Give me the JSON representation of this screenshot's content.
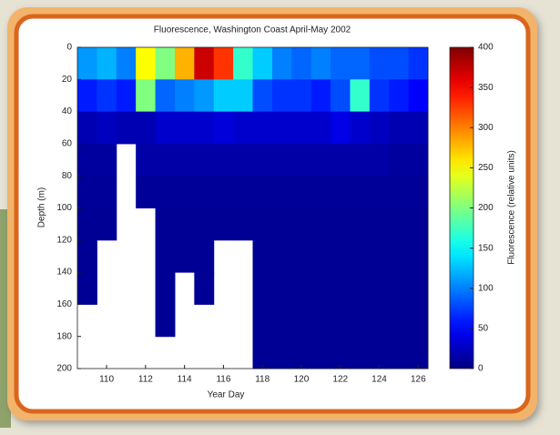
{
  "chart_data": {
    "type": "heatmap",
    "title": "Fluorescence, Washington Coast April-May 2002",
    "x_label": "Year Day",
    "y_label": "Depth (m)",
    "x_bins": [
      108.5,
      109.5,
      110.5,
      111.5,
      112.5,
      113.5,
      114.5,
      115.5,
      116.5,
      117.5,
      118.5,
      119.5,
      120.5,
      121.5,
      122.5,
      123.5,
      124.5,
      125.5,
      126.5
    ],
    "y_bins": [
      0,
      20,
      40,
      60,
      80,
      100,
      120,
      140,
      160,
      180,
      200
    ],
    "xlim": [
      108.5,
      126.5
    ],
    "xticks": [
      110,
      112,
      114,
      116,
      118,
      120,
      122,
      124,
      126
    ],
    "ylim": [
      0,
      200
    ],
    "yticks": [
      0,
      20,
      40,
      60,
      80,
      100,
      120,
      140,
      160,
      180,
      200
    ],
    "y_inverted": true,
    "colormap": "jet",
    "values": [
      [
        110,
        120,
        100,
        250,
        200,
        280,
        370,
        330,
        170,
        130,
        100,
        90,
        100,
        90,
        90,
        80,
        80,
        70
      ],
      [
        60,
        70,
        60,
        200,
        90,
        100,
        110,
        130,
        130,
        80,
        70,
        70,
        60,
        80,
        170,
        70,
        60,
        50
      ],
      [
        20,
        25,
        20,
        20,
        30,
        30,
        30,
        35,
        30,
        30,
        30,
        30,
        30,
        40,
        30,
        25,
        20,
        20
      ],
      [
        12,
        12,
        null,
        15,
        15,
        15,
        15,
        15,
        15,
        15,
        15,
        15,
        15,
        15,
        15,
        15,
        12,
        12
      ],
      [
        10,
        10,
        null,
        10,
        10,
        10,
        10,
        10,
        10,
        10,
        10,
        10,
        10,
        10,
        10,
        10,
        10,
        10
      ],
      [
        8,
        8,
        null,
        null,
        8,
        8,
        8,
        8,
        8,
        8,
        8,
        8,
        8,
        8,
        8,
        8,
        8,
        8
      ],
      [
        8,
        null,
        null,
        null,
        8,
        8,
        8,
        null,
        null,
        8,
        8,
        8,
        8,
        8,
        8,
        8,
        8,
        8
      ],
      [
        8,
        null,
        null,
        null,
        8,
        null,
        8,
        null,
        null,
        8,
        8,
        8,
        8,
        8,
        8,
        8,
        8,
        8
      ],
      [
        null,
        null,
        null,
        null,
        8,
        null,
        null,
        null,
        null,
        8,
        8,
        8,
        8,
        8,
        8,
        8,
        8,
        8
      ],
      [
        null,
        null,
        null,
        null,
        null,
        null,
        null,
        null,
        null,
        8,
        8,
        8,
        8,
        8,
        8,
        8,
        8,
        8
      ]
    ],
    "colorbar": {
      "label": "Fluorescence (relative units)",
      "zlim": [
        0,
        400
      ],
      "ticks": [
        0,
        50,
        100,
        150,
        200,
        250,
        300,
        350,
        400
      ]
    }
  }
}
